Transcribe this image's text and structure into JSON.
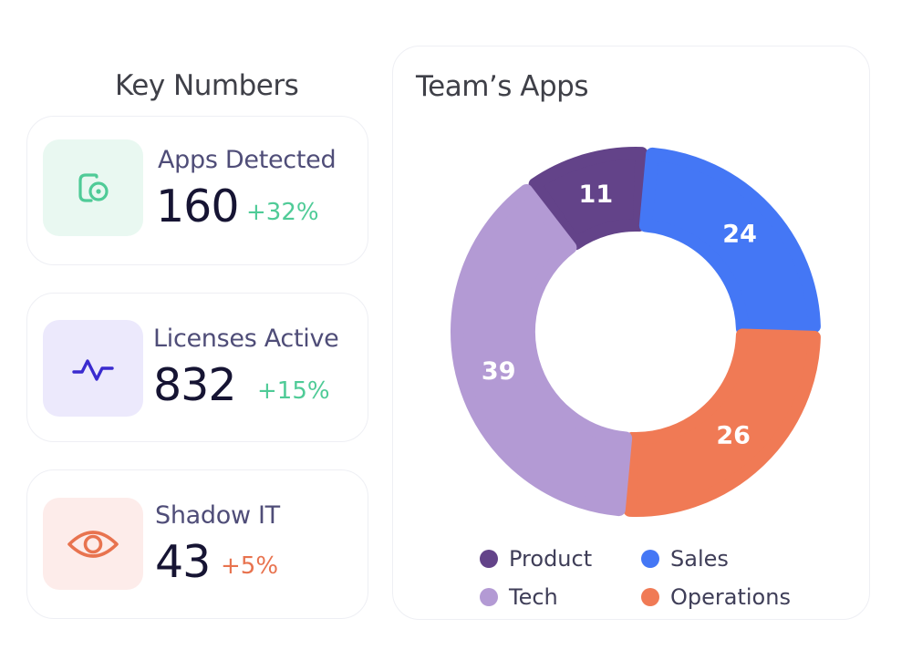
{
  "key_numbers": {
    "title": "Key Numbers",
    "cards": [
      {
        "label": "Apps Detected",
        "value": "160",
        "change": "+32%",
        "icon": "app-detect-icon",
        "accent": "#4fcb97",
        "icon_bg": "#e9f8f1",
        "change_color": "#4fcb97"
      },
      {
        "label": "Licenses Active",
        "value": "832",
        "change": "+15%",
        "icon": "pulse-icon",
        "accent": "#3a2bcf",
        "icon_bg": "#ece9fc",
        "change_color": "#4fcb97"
      },
      {
        "label": "Shadow IT",
        "value": "43",
        "change": "+5%",
        "icon": "eye-icon",
        "accent": "#e8734f",
        "icon_bg": "#fdecea",
        "change_color": "#e8734f"
      }
    ]
  },
  "chart_data": {
    "type": "pie",
    "title": "Team’s Apps",
    "categories": [
      "Product",
      "Sales",
      "Operations",
      "Tech"
    ],
    "values": [
      11,
      24,
      26,
      39
    ],
    "colors": [
      "#634389",
      "#4477f5",
      "#f07a55",
      "#b39ad4"
    ],
    "legend": [
      {
        "name": "Product",
        "color": "#634389"
      },
      {
        "name": "Sales",
        "color": "#4477f5"
      },
      {
        "name": "Tech",
        "color": "#b39ad4"
      },
      {
        "name": "Operations",
        "color": "#f07a55"
      }
    ],
    "legend_position": "bottom"
  }
}
